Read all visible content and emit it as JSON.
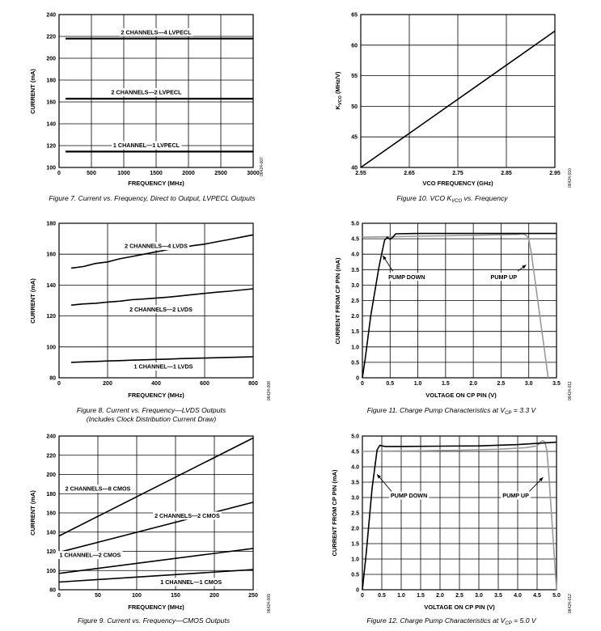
{
  "colors": {
    "axis": "#000000",
    "grid": "#000000",
    "line": "#000000",
    "line_pump_up": "#9a9a9a"
  },
  "chart_data": [
    {
      "id": "fig7",
      "type": "line",
      "title": "",
      "caption": "Figure 7. Current vs. Frequency, Direct to Output, LVPECL Outputs",
      "xlabel": "FREQUENCY (MHz)",
      "ylabel": "CURRENT (mA)",
      "xlim": [
        0,
        3000
      ],
      "ylim": [
        100,
        240
      ],
      "xticks": [
        0,
        500,
        1000,
        1500,
        2000,
        2500,
        3000
      ],
      "yticks": [
        100,
        120,
        140,
        160,
        180,
        200,
        220,
        240
      ],
      "xtick_labels": [
        "0",
        "500",
        "1000",
        "1500",
        "2000",
        "2500",
        "3000"
      ],
      "ytick_labels": [
        "100",
        "120",
        "140",
        "160",
        "180",
        "200",
        "220",
        "240"
      ],
      "code": "06424-007",
      "series": [
        {
          "name": "4LVPECL",
          "x": [
            100,
            3000
          ],
          "y": [
            218,
            218
          ],
          "lw": 2.2
        },
        {
          "name": "2LVPECL",
          "x": [
            100,
            3000
          ],
          "y": [
            163,
            163
          ],
          "lw": 2.2
        },
        {
          "name": "1LVPECL",
          "x": [
            100,
            3000
          ],
          "y": [
            114.5,
            114.5
          ],
          "lw": 2.2
        }
      ],
      "labels": [
        {
          "text": "2 CHANNELS—4 LVPECL",
          "x": 1500,
          "y": 222
        },
        {
          "text": "2 CHANNELS—2 LVPECL",
          "x": 1350,
          "y": 167
        },
        {
          "text": "1 CHANNEL—1 LVPECL",
          "x": 1350,
          "y": 118.5
        }
      ],
      "arrows": []
    },
    {
      "id": "fig10",
      "type": "line",
      "title": "",
      "caption_pre": "Figure 10. VCO K",
      "caption_sub": "VCO",
      "caption_post": " vs. Frequency",
      "xlabel": "VCO FREQUENCY (GHz)",
      "ylabel_main": "K",
      "ylabel_sub": "VCO",
      "ylabel_post": " (MHz/V)",
      "xlim": [
        2.55,
        2.95
      ],
      "ylim": [
        40,
        65
      ],
      "xticks": [
        2.55,
        2.65,
        2.75,
        2.85,
        2.95
      ],
      "yticks": [
        40,
        45,
        50,
        55,
        60,
        65
      ],
      "xtick_labels": [
        "2.55",
        "2.65",
        "2.75",
        "2.85",
        "2.95"
      ],
      "ytick_labels": [
        "40",
        "45",
        "50",
        "55",
        "60",
        "65"
      ],
      "code": "06424-010",
      "series": [
        {
          "name": "KVCO",
          "x": [
            2.55,
            2.95
          ],
          "y": [
            40,
            62.3
          ],
          "lw": 1.6
        }
      ],
      "labels": [],
      "arrows": []
    },
    {
      "id": "fig8",
      "type": "line",
      "title": "",
      "caption": "Figure 8. Current vs. Frequency—LVDS Outputs",
      "caption2": "(Includes Clock Distribution Current Draw)",
      "xlabel": "FREQUENCY (MHz)",
      "ylabel": "CURRENT (mA)",
      "xlim": [
        0,
        800
      ],
      "ylim": [
        80,
        180
      ],
      "xticks": [
        0,
        200,
        400,
        600,
        800
      ],
      "yticks": [
        80,
        100,
        120,
        140,
        160,
        180
      ],
      "xtick_labels": [
        "0",
        "200",
        "400",
        "600",
        "800"
      ],
      "ytick_labels": [
        "80",
        "100",
        "120",
        "140",
        "160",
        "180"
      ],
      "code": "06424-008",
      "series": [
        {
          "name": "4LVDS",
          "x": [
            50,
            100,
            150,
            200,
            250,
            300,
            350,
            400,
            450,
            500,
            550,
            600,
            650,
            700,
            750,
            800
          ],
          "y": [
            151,
            152,
            154,
            155,
            157,
            158.5,
            160,
            161.5,
            163,
            164,
            165.5,
            166.5,
            168,
            169.5,
            171,
            172.5
          ],
          "lw": 1.6
        },
        {
          "name": "2LVDS",
          "x": [
            50,
            100,
            150,
            200,
            250,
            300,
            350,
            400,
            450,
            500,
            550,
            600,
            650,
            700,
            750,
            800
          ],
          "y": [
            127,
            127.8,
            128.2,
            129,
            129.6,
            130.5,
            131,
            131.6,
            132.2,
            133,
            133.8,
            134.6,
            135.4,
            136,
            136.8,
            137.6
          ],
          "lw": 1.6
        },
        {
          "name": "1LVDS",
          "x": [
            50,
            100,
            150,
            200,
            250,
            300,
            350,
            400,
            450,
            500,
            550,
            600,
            650,
            700,
            750,
            800
          ],
          "y": [
            90,
            90.3,
            90.6,
            90.9,
            91.1,
            91.4,
            91.6,
            91.9,
            92.1,
            92.4,
            92.6,
            92.8,
            93,
            93.2,
            93.4,
            93.6
          ],
          "lw": 1.6
        }
      ],
      "labels": [
        {
          "text": "2 CHANNELS—4 LVDS",
          "x": 400,
          "y": 164
        },
        {
          "text": "2 CHANNELS—2 LVDS",
          "x": 420,
          "y": 123
        },
        {
          "text": "1 CHANNEL—1 LVDS",
          "x": 430,
          "y": 86
        }
      ],
      "arrows": []
    },
    {
      "id": "fig11",
      "type": "line",
      "title": "",
      "caption_pre": "Figure 11. Charge Pump Characteristics at V",
      "caption_sub": "CP",
      "caption_post": " = 3.3 V",
      "xlabel": "VOLTAGE ON CP PIN (V)",
      "ylabel": "CURRENT FROM CP PIN (mA)",
      "xlim": [
        0,
        3.5
      ],
      "ylim": [
        0,
        5.0
      ],
      "xticks": [
        0,
        0.5,
        1.0,
        1.5,
        2.0,
        2.5,
        3.0,
        3.5
      ],
      "yticks": [
        0,
        0.5,
        1.0,
        1.5,
        2.0,
        2.5,
        3.0,
        3.5,
        4.0,
        4.5,
        5.0
      ],
      "xtick_labels": [
        "0",
        "0.5",
        "1.0",
        "1.5",
        "2.0",
        "2.5",
        "3.0",
        "3.5"
      ],
      "ytick_labels": [
        "0",
        "0.5",
        "1.0",
        "1.5",
        "2.0",
        "2.5",
        "3.0",
        "3.5",
        "4.0",
        "4.5",
        "5.0"
      ],
      "code": "06424-011",
      "series": [
        {
          "name": "PUMP UP",
          "x": [
            0,
            0.3,
            1.0,
            2.0,
            2.8,
            2.88,
            2.92,
            2.96,
            3.0,
            3.05,
            3.35
          ],
          "y": [
            4.55,
            4.56,
            4.58,
            4.61,
            4.64,
            4.66,
            4.64,
            4.6,
            4.5,
            4.0,
            0
          ],
          "lw": 1.6,
          "gray": true
        },
        {
          "name": "PUMP DOWN",
          "x": [
            0,
            0.05,
            0.15,
            0.3,
            0.4,
            0.45,
            0.5,
            0.55,
            0.6,
            1.0,
            2.0,
            3.0,
            3.5
          ],
          "y": [
            0,
            0.6,
            2.0,
            3.6,
            4.45,
            4.55,
            4.48,
            4.55,
            4.66,
            4.67,
            4.67,
            4.67,
            4.67
          ],
          "lw": 1.6
        }
      ],
      "labels": [
        {
          "text": "PUMP DOWN",
          "x": 0.8,
          "y": 3.2
        },
        {
          "text": "PUMP UP",
          "x": 2.55,
          "y": 3.2
        }
      ],
      "arrows": [
        {
          "x1": 0.55,
          "y1": 3.45,
          "x2": 0.37,
          "y2": 3.95
        },
        {
          "x1": 2.8,
          "y1": 3.45,
          "x2": 2.95,
          "y2": 3.65
        }
      ]
    },
    {
      "id": "fig9",
      "type": "line",
      "title": "",
      "caption": "Figure 9. Current vs. Frequency—CMOS Outputs",
      "xlabel": "FREQUENCY (MHz)",
      "ylabel": "CURRENT (mA)",
      "xlim": [
        0,
        250
      ],
      "ylim": [
        80,
        240
      ],
      "xticks": [
        0,
        50,
        100,
        150,
        200,
        250
      ],
      "yticks": [
        80,
        100,
        120,
        140,
        160,
        180,
        200,
        220,
        240
      ],
      "xtick_labels": [
        "0",
        "50",
        "100",
        "150",
        "200",
        "250"
      ],
      "ytick_labels": [
        "80",
        "100",
        "120",
        "140",
        "160",
        "180",
        "200",
        "220",
        "240"
      ],
      "code": "06424-009",
      "series": [
        {
          "name": "8CMOS",
          "x": [
            0,
            250
          ],
          "y": [
            136,
            238
          ],
          "lw": 1.6
        },
        {
          "name": "2CMOS2",
          "x": [
            0,
            250
          ],
          "y": [
            119,
            171
          ],
          "lw": 1.6
        },
        {
          "name": "2CMOS1",
          "x": [
            0,
            250
          ],
          "y": [
            97,
            123
          ],
          "lw": 1.6
        },
        {
          "name": "1CMOS",
          "x": [
            0,
            250
          ],
          "y": [
            88,
            101
          ],
          "lw": 1.6
        }
      ],
      "labels": [
        {
          "text": "2 CHANNELS—8 CMOS",
          "x": 50,
          "y": 183
        },
        {
          "text": "2 CHANNELS—2 CMOS",
          "x": 165,
          "y": 155
        },
        {
          "text": "1 CHANNEL—2 CMOS",
          "x": 40,
          "y": 114
        },
        {
          "text": "1 CHANNEL—1 CMOS",
          "x": 170,
          "y": 86
        }
      ],
      "arrows": []
    },
    {
      "id": "fig12",
      "type": "line",
      "title": "",
      "caption_pre": "Figure 12. Charge Pump Characteristics at V",
      "caption_sub": "CP",
      "caption_post": " = 5.0 V",
      "xlabel": "VOLTAGE ON CP PIN (V)",
      "ylabel": "CURRENT FROM CP PIN (mA)",
      "xlim": [
        0,
        5.0
      ],
      "ylim": [
        0,
        5.0
      ],
      "xticks": [
        0,
        0.5,
        1.0,
        1.5,
        2.0,
        2.5,
        3.0,
        3.5,
        4.0,
        4.5,
        5.0
      ],
      "yticks": [
        0,
        0.5,
        1.0,
        1.5,
        2.0,
        2.5,
        3.0,
        3.5,
        4.0,
        4.5,
        5.0
      ],
      "xtick_labels": [
        "0",
        "0.5",
        "1.0",
        "1.5",
        "2.0",
        "2.5",
        "3.0",
        "3.5",
        "4.0",
        "4.5",
        "5.0"
      ],
      "ytick_labels": [
        "0",
        "0.5",
        "1.0",
        "1.5",
        "2.0",
        "2.5",
        "3.0",
        "3.5",
        "4.0",
        "4.5",
        "5.0"
      ],
      "code": "06424-012",
      "series": [
        {
          "name": "PUMP UP",
          "x": [
            0,
            0.5,
            1.5,
            2.5,
            3.5,
            4.2,
            4.5,
            4.6,
            4.65,
            4.7,
            4.75,
            4.8,
            5.0
          ],
          "y": [
            4.5,
            4.51,
            4.52,
            4.54,
            4.57,
            4.62,
            4.68,
            4.82,
            4.85,
            4.8,
            4.55,
            3.8,
            0
          ],
          "lw": 1.6,
          "gray": true
        },
        {
          "name": "PUMP DOWN",
          "x": [
            0,
            0.1,
            0.25,
            0.38,
            0.45,
            0.5,
            0.6,
            1.0,
            2.0,
            3.0,
            4.0,
            5.0
          ],
          "y": [
            0,
            1.2,
            3.3,
            4.55,
            4.7,
            4.68,
            4.66,
            4.66,
            4.67,
            4.68,
            4.72,
            4.8
          ],
          "lw": 1.6
        }
      ],
      "labels": [
        {
          "text": "PUMP DOWN",
          "x": 1.2,
          "y": 3.0
        },
        {
          "text": "PUMP UP",
          "x": 3.95,
          "y": 3.0
        }
      ],
      "arrows": [
        {
          "x1": 0.75,
          "y1": 3.2,
          "x2": 0.38,
          "y2": 3.75
        },
        {
          "x1": 4.3,
          "y1": 3.2,
          "x2": 4.65,
          "y2": 3.65
        }
      ]
    }
  ]
}
